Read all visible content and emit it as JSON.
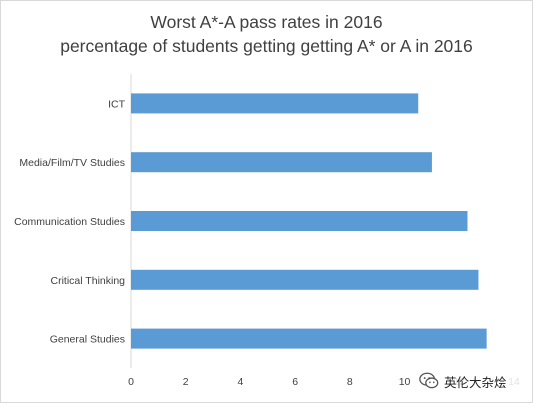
{
  "chart_data": {
    "type": "bar",
    "orientation": "horizontal",
    "title": "Worst A*-A pass rates in 2016",
    "subtitle": "percentage of students getting getting A* or A in 2016",
    "categories": [
      "ICT",
      "Media/Film/TV Studies",
      "Communication Studies",
      "Critical Thinking",
      "General Studies"
    ],
    "values": [
      10.5,
      11.0,
      12.3,
      12.7,
      13.0
    ],
    "xlim": [
      0,
      14
    ],
    "x_ticks": [
      "0",
      "2",
      "4",
      "6",
      "8",
      "10",
      "12",
      "14"
    ],
    "grid": false,
    "legend": "none",
    "bar_color": "#5b9bd5"
  },
  "watermark": {
    "text": "英伦大杂烩",
    "icon": "wechat-bubble-icon"
  }
}
